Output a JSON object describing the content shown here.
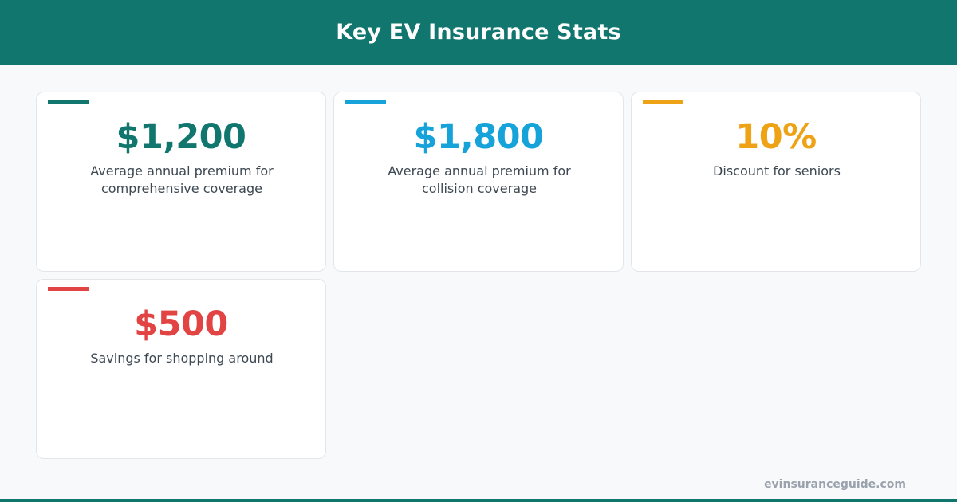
{
  "header": {
    "title": "Key EV Insurance Stats"
  },
  "stats": [
    {
      "value": "$1,200",
      "description": "Average annual premium for comprehensive coverage",
      "color": "#10766e"
    },
    {
      "value": "$1,800",
      "description": "Average annual premium for collision coverage",
      "color": "#15a3d9"
    },
    {
      "value": "10%",
      "description": "Discount for seniors",
      "color": "#eea215"
    },
    {
      "value": "$500",
      "description": "Savings for shopping around",
      "color": "#e24444"
    }
  ],
  "footer": {
    "site": "evinsuranceguide.com"
  },
  "colors": {
    "brand": "#10766e",
    "background": "#f8f9fb"
  }
}
